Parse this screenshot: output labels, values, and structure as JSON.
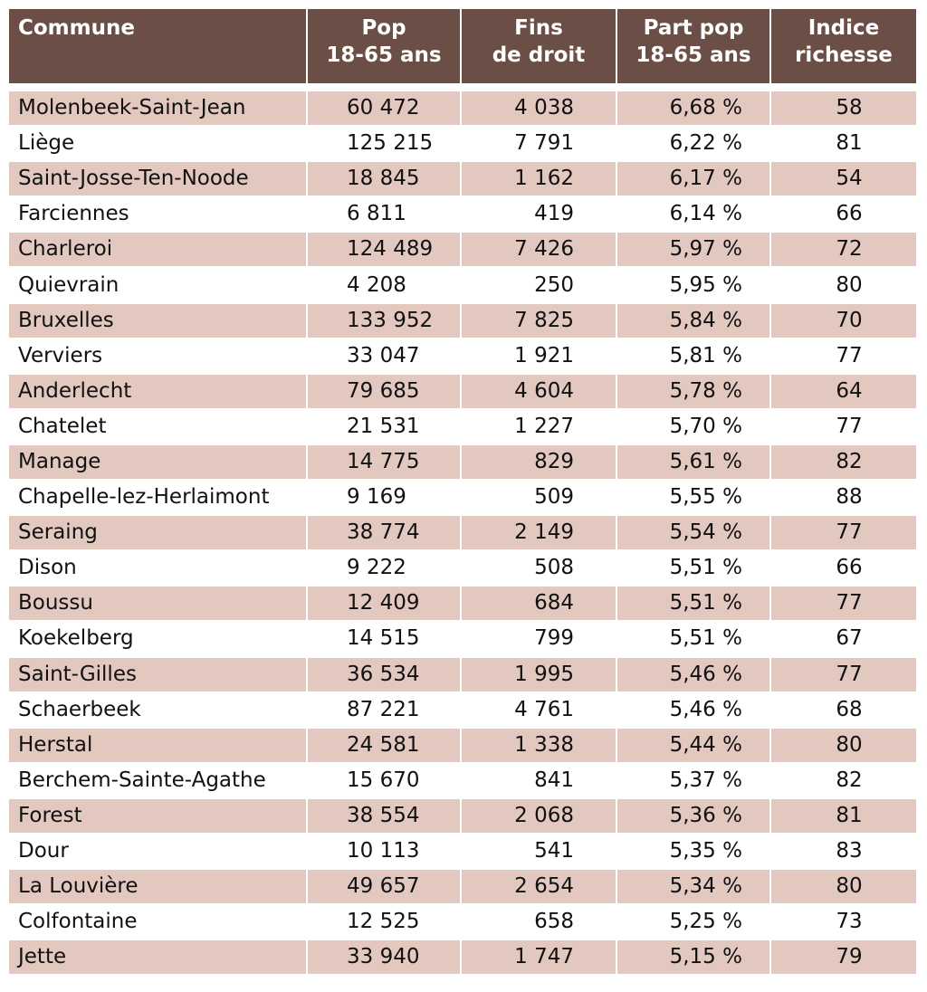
{
  "colors": {
    "header_bg": "#6b4f47",
    "stripe": "#e3c8bf"
  },
  "headers": [
    "Commune",
    "Pop\n18-65 ans",
    "Fins\nde droit",
    "Part pop\n18-65 ans",
    "Indice\nrichesse"
  ],
  "rows": [
    [
      "Molenbeek-Saint-Jean",
      "60 472",
      "4 038",
      "6,68 %",
      "58"
    ],
    [
      "Liège",
      "125 215",
      "7 791",
      "6,22 %",
      "81"
    ],
    [
      "Saint-Josse-Ten-Noode",
      "18 845",
      "1 162",
      "6,17 %",
      "54"
    ],
    [
      "Farciennes",
      "6 811",
      "419",
      "6,14 %",
      "66"
    ],
    [
      "Charleroi",
      "124 489",
      "7 426",
      "5,97 %",
      "72"
    ],
    [
      "Quievrain",
      "4 208",
      "250",
      "5,95 %",
      "80"
    ],
    [
      "Bruxelles",
      "133 952",
      "7 825",
      "5,84 %",
      "70"
    ],
    [
      "Verviers",
      "33 047",
      "1 921",
      "5,81 %",
      "77"
    ],
    [
      "Anderlecht",
      "79 685",
      "4 604",
      "5,78 %",
      "64"
    ],
    [
      "Chatelet",
      "21 531",
      "1 227",
      "5,70 %",
      "77"
    ],
    [
      "Manage",
      "14 775",
      "829",
      "5,61 %",
      "82"
    ],
    [
      "Chapelle-lez-Herlaimont",
      "9 169",
      "509",
      "5,55 %",
      "88"
    ],
    [
      "Seraing",
      "38 774",
      "2 149",
      "5,54 %",
      "77"
    ],
    [
      "Dison",
      "9 222",
      "508",
      "5,51 %",
      "66"
    ],
    [
      "Boussu",
      "12 409",
      "684",
      "5,51 %",
      "77"
    ],
    [
      "Koekelberg",
      "14 515",
      "799",
      "5,51 %",
      "67"
    ],
    [
      "Saint-Gilles",
      "36 534",
      "1 995",
      "5,46 %",
      "77"
    ],
    [
      "Schaerbeek",
      "87 221",
      "4 761",
      "5,46 %",
      "68"
    ],
    [
      "Herstal",
      "24 581",
      "1 338",
      "5,44 %",
      "80"
    ],
    [
      "Berchem-Sainte-Agathe",
      "15 670",
      "841",
      "5,37 %",
      "82"
    ],
    [
      "Forest",
      "38 554",
      "2 068",
      "5,36 %",
      "81"
    ],
    [
      "Dour",
      "10 113",
      "541",
      "5,35 %",
      "83"
    ],
    [
      "La Louvière",
      "49 657",
      "2 654",
      "5,34 %",
      "80"
    ],
    [
      "Colfontaine",
      "12 525",
      "658",
      "5,25 %",
      "73"
    ],
    [
      "Jette",
      "33 940",
      "1 747",
      "5,15 %",
      "79"
    ]
  ]
}
